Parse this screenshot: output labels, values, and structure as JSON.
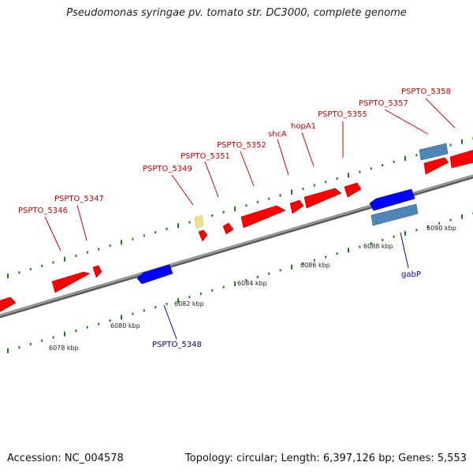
{
  "title": "Pseudomonas syringae pv. tomato str. DC3000, complete genome",
  "footer": {
    "accession": "Accession: NC_004578",
    "summary": "Topology: circular; Length: 6,397,126 bp; Genes: 5,553"
  },
  "colors": {
    "forward_gene": "#ff0000",
    "reverse_gene": "#0000ff",
    "forward_label": "#cc0000",
    "reverse_label": "#0000aa",
    "steelblue_feature": "#4f86b8",
    "pseudo_feature": "#efe08a",
    "backbone": "#808080",
    "tick": "#1a7a1a"
  },
  "scale": {
    "unit": "kbp",
    "ticks": [
      "6078 kbp",
      "6080 kbp",
      "6082 kbp",
      "6084 kbp",
      "6086 kbp",
      "6088 kbp",
      "6090 kbp"
    ]
  },
  "genes": [
    {
      "label": "PSPTO_5346",
      "strand": "+"
    },
    {
      "label": "PSPTO_5347",
      "strand": "+"
    },
    {
      "label": "PSPTO_5348",
      "strand": "-"
    },
    {
      "label": "PSPTO_5349",
      "strand": "+"
    },
    {
      "label": "PSPTO_5351",
      "strand": "+"
    },
    {
      "label": "PSPTO_5352",
      "strand": "+"
    },
    {
      "label": "shcA",
      "strand": "+"
    },
    {
      "label": "hopA1",
      "strand": "+"
    },
    {
      "label": "PSPTO_5355",
      "strand": "+"
    },
    {
      "label": "PSPTO_5357",
      "strand": "+"
    },
    {
      "label": "PSPTO_5358",
      "strand": "+"
    },
    {
      "label": "gabP",
      "strand": "-"
    }
  ]
}
